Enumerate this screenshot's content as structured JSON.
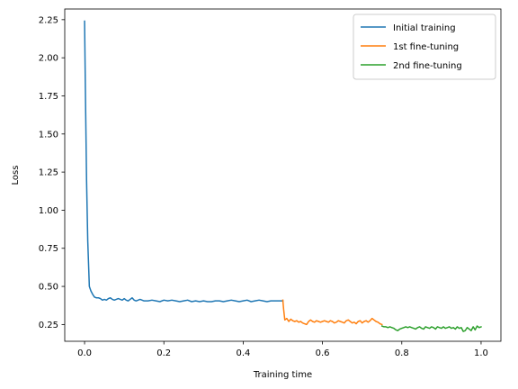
{
  "chart_data": {
    "type": "line",
    "title": "",
    "xlabel": "Training time",
    "ylabel": "Loss",
    "xlim": [
      -0.05,
      1.05
    ],
    "ylim": [
      0.14,
      2.32
    ],
    "x_ticks": [
      0.0,
      0.2,
      0.4,
      0.6,
      0.8,
      1.0
    ],
    "x_tick_labels": [
      "0.0",
      "0.2",
      "0.4",
      "0.6",
      "0.8",
      "1.0"
    ],
    "y_ticks": [
      0.25,
      0.5,
      0.75,
      1.0,
      1.25,
      1.5,
      1.75,
      2.0,
      2.25
    ],
    "y_tick_labels": [
      "0.25",
      "0.50",
      "0.75",
      "1.00",
      "1.25",
      "1.50",
      "1.75",
      "2.00",
      "2.25"
    ],
    "grid": false,
    "legend": "top-right",
    "series": [
      {
        "name": "Initial training",
        "color": "#1f77b4",
        "x": [
          0.0,
          0.002,
          0.005,
          0.008,
          0.012,
          0.016,
          0.02,
          0.025,
          0.03,
          0.035,
          0.04,
          0.045,
          0.05,
          0.055,
          0.06,
          0.065,
          0.07,
          0.075,
          0.08,
          0.085,
          0.09,
          0.095,
          0.1,
          0.105,
          0.11,
          0.115,
          0.12,
          0.125,
          0.13,
          0.135,
          0.14,
          0.145,
          0.15,
          0.16,
          0.17,
          0.18,
          0.19,
          0.2,
          0.21,
          0.22,
          0.23,
          0.24,
          0.25,
          0.26,
          0.27,
          0.28,
          0.29,
          0.3,
          0.31,
          0.32,
          0.33,
          0.34,
          0.35,
          0.36,
          0.37,
          0.38,
          0.39,
          0.4,
          0.41,
          0.42,
          0.43,
          0.44,
          0.45,
          0.46,
          0.47,
          0.48,
          0.49,
          0.5
        ],
        "values": [
          2.24,
          1.8,
          1.2,
          0.8,
          0.5,
          0.47,
          0.45,
          0.43,
          0.425,
          0.425,
          0.42,
          0.41,
          0.415,
          0.41,
          0.42,
          0.425,
          0.415,
          0.41,
          0.415,
          0.42,
          0.415,
          0.41,
          0.42,
          0.41,
          0.405,
          0.415,
          0.425,
          0.41,
          0.405,
          0.41,
          0.415,
          0.41,
          0.405,
          0.405,
          0.41,
          0.405,
          0.4,
          0.41,
          0.405,
          0.41,
          0.405,
          0.4,
          0.405,
          0.41,
          0.4,
          0.405,
          0.4,
          0.405,
          0.4,
          0.4,
          0.405,
          0.405,
          0.4,
          0.405,
          0.41,
          0.405,
          0.4,
          0.405,
          0.41,
          0.4,
          0.405,
          0.41,
          0.405,
          0.4,
          0.405,
          0.405,
          0.405,
          0.405
        ]
      },
      {
        "name": "1st fine-tuning",
        "color": "#ff7f0e",
        "x": [
          0.5,
          0.502,
          0.505,
          0.51,
          0.515,
          0.52,
          0.525,
          0.53,
          0.535,
          0.54,
          0.545,
          0.55,
          0.555,
          0.56,
          0.565,
          0.57,
          0.575,
          0.58,
          0.585,
          0.59,
          0.595,
          0.6,
          0.605,
          0.61,
          0.615,
          0.62,
          0.625,
          0.63,
          0.635,
          0.64,
          0.645,
          0.65,
          0.655,
          0.66,
          0.665,
          0.67,
          0.675,
          0.68,
          0.685,
          0.69,
          0.695,
          0.7,
          0.705,
          0.71,
          0.715,
          0.72,
          0.725,
          0.73,
          0.735,
          0.74,
          0.745,
          0.75
        ],
        "values": [
          0.41,
          0.35,
          0.28,
          0.29,
          0.27,
          0.285,
          0.275,
          0.27,
          0.275,
          0.265,
          0.27,
          0.26,
          0.255,
          0.25,
          0.27,
          0.28,
          0.27,
          0.265,
          0.275,
          0.27,
          0.265,
          0.27,
          0.275,
          0.27,
          0.265,
          0.275,
          0.27,
          0.26,
          0.265,
          0.275,
          0.27,
          0.265,
          0.26,
          0.275,
          0.28,
          0.27,
          0.26,
          0.265,
          0.255,
          0.27,
          0.275,
          0.26,
          0.27,
          0.275,
          0.265,
          0.275,
          0.29,
          0.28,
          0.27,
          0.265,
          0.255,
          0.25
        ]
      },
      {
        "name": "2nd fine-tuning",
        "color": "#2ca02c",
        "x": [
          0.75,
          0.755,
          0.76,
          0.765,
          0.77,
          0.775,
          0.78,
          0.785,
          0.79,
          0.795,
          0.8,
          0.805,
          0.81,
          0.815,
          0.82,
          0.825,
          0.83,
          0.835,
          0.84,
          0.845,
          0.85,
          0.855,
          0.86,
          0.865,
          0.87,
          0.875,
          0.88,
          0.885,
          0.89,
          0.895,
          0.9,
          0.905,
          0.91,
          0.915,
          0.92,
          0.925,
          0.93,
          0.935,
          0.94,
          0.945,
          0.95,
          0.955,
          0.96,
          0.965,
          0.97,
          0.975,
          0.98,
          0.985,
          0.99,
          0.995,
          1.0
        ],
        "values": [
          0.24,
          0.235,
          0.235,
          0.23,
          0.235,
          0.23,
          0.225,
          0.215,
          0.21,
          0.22,
          0.225,
          0.23,
          0.235,
          0.23,
          0.235,
          0.23,
          0.225,
          0.22,
          0.23,
          0.235,
          0.225,
          0.22,
          0.235,
          0.23,
          0.225,
          0.235,
          0.23,
          0.22,
          0.235,
          0.23,
          0.225,
          0.235,
          0.225,
          0.23,
          0.235,
          0.225,
          0.23,
          0.22,
          0.235,
          0.225,
          0.23,
          0.205,
          0.21,
          0.23,
          0.22,
          0.21,
          0.235,
          0.215,
          0.24,
          0.23,
          0.235
        ]
      }
    ]
  }
}
